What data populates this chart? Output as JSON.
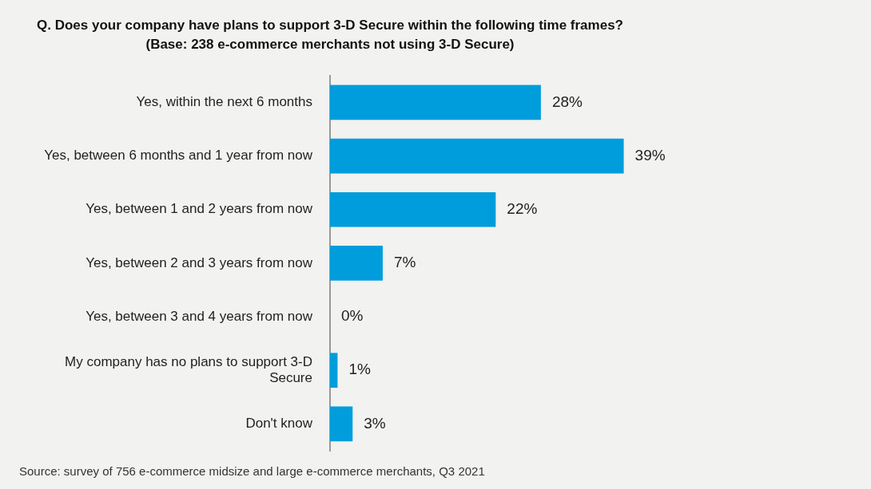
{
  "chart_data": {
    "type": "bar",
    "orientation": "horizontal",
    "title": "Q. Does your company have plans to support 3-D Secure within the following time frames?",
    "subtitle": "(Base: 238 e-commerce merchants not using 3-D Secure)",
    "categories": [
      "Yes, within the next 6 months",
      "Yes, between 6 months and 1 year from now",
      "Yes, between 1 and 2 years from now",
      "Yes, between 2 and 3 years from now",
      "Yes, between 3 and 4 years from now",
      "My company has no plans to support 3-D Secure",
      "Don't know"
    ],
    "values": [
      28,
      39,
      22,
      7,
      0,
      1,
      3
    ],
    "value_labels": [
      "28%",
      "39%",
      "22%",
      "7%",
      "0%",
      "1%",
      "3%"
    ],
    "color": "#009ddc",
    "tick_labels": "y",
    "annotations": [
      "Source: survey of 756 e-commerce midsize and large e-commerce merchants, Q3 2021"
    ]
  }
}
